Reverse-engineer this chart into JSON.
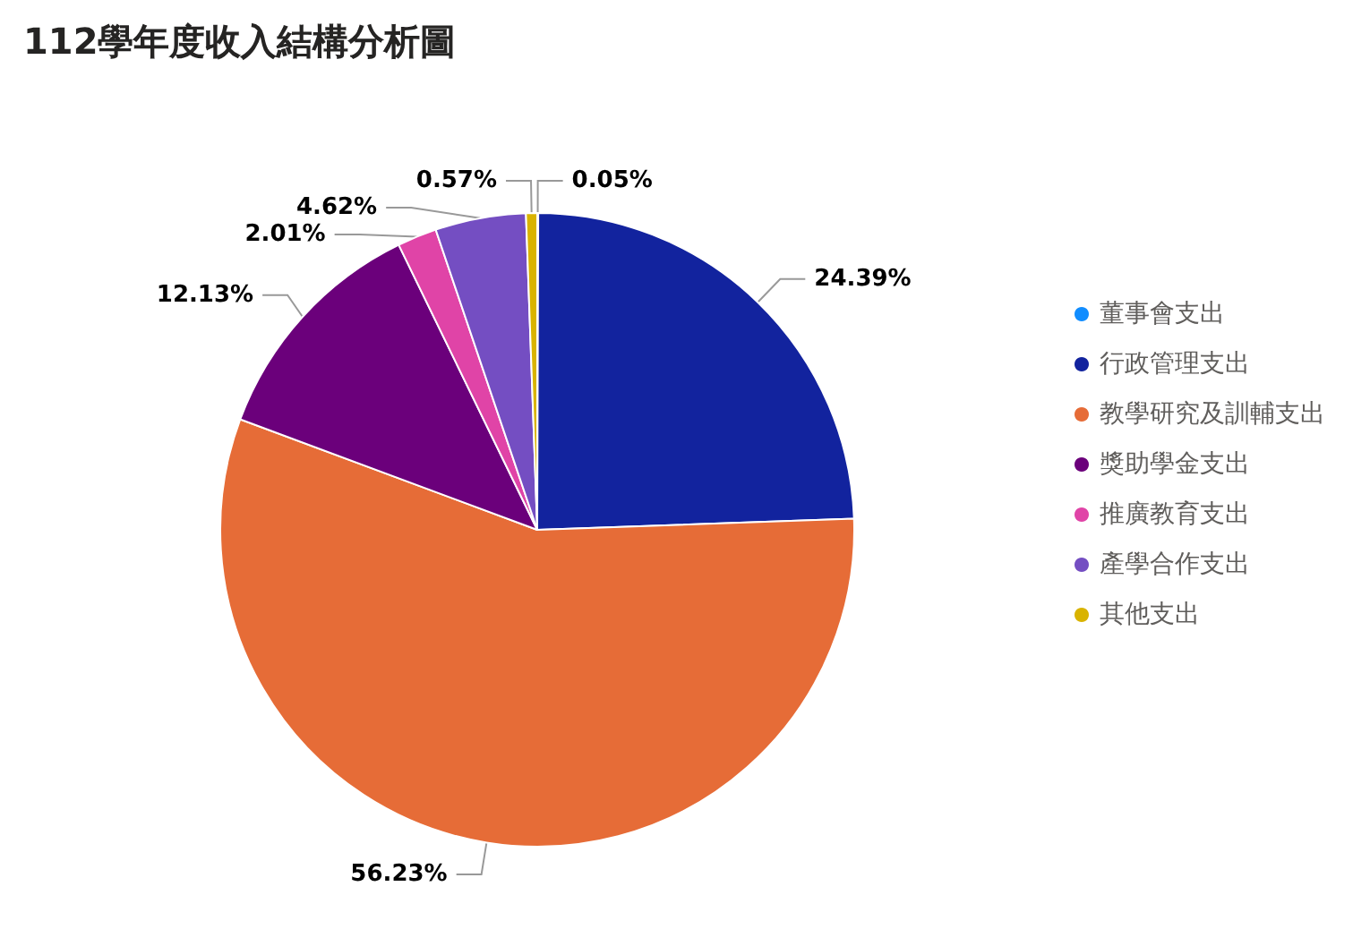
{
  "chart_data": {
    "type": "pie",
    "title": "112學年度收入結構分析圖",
    "categories": [
      "董事會支出",
      "行政管理支出",
      "教學研究及訓輔支出",
      "獎助學金支出",
      "推廣教育支出",
      "產學合作支出",
      "其他支出"
    ],
    "values": [
      0.05,
      24.39,
      56.23,
      12.13,
      2.01,
      4.62,
      0.57
    ],
    "value_labels": [
      "0.05%",
      "24.39%",
      "56.23%",
      "12.13%",
      "2.01%",
      "4.62%",
      "0.57%"
    ],
    "colors": [
      "#118dff",
      "#12239e",
      "#e66c37",
      "#6b007b",
      "#e044a7",
      "#744ec2",
      "#d9b300"
    ],
    "legend": "right"
  }
}
